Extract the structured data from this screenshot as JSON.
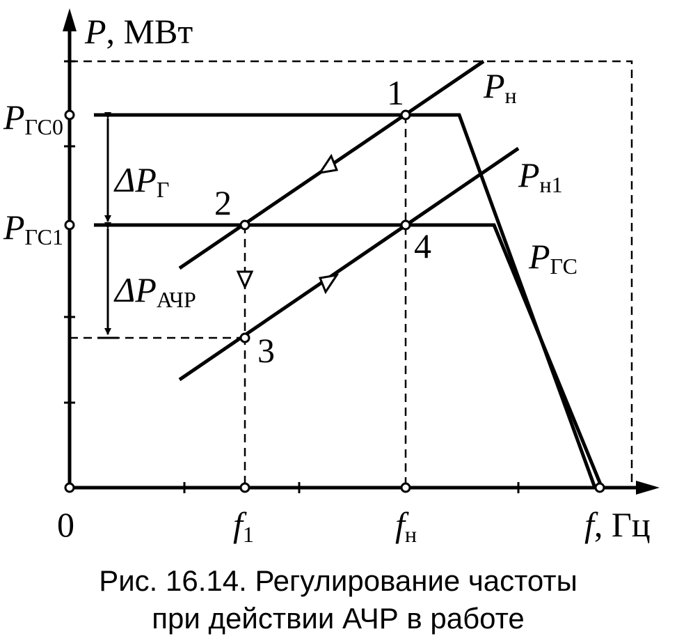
{
  "axes": {
    "y_label": {
      "symbol": "P",
      "unit": ", МВт"
    },
    "x_label": {
      "symbol": "f",
      "unit": ", Гц"
    },
    "origin": "0"
  },
  "levels": [
    {
      "main": "P",
      "sub": "ГС0"
    },
    {
      "main": "P",
      "sub": "ГС1"
    }
  ],
  "deltas": [
    {
      "main": "ΔP",
      "sub": "Г"
    },
    {
      "main": "ΔP",
      "sub": "АЧР"
    }
  ],
  "points": [
    "1",
    "2",
    "3",
    "4"
  ],
  "curves": [
    {
      "main": "P",
      "sub": "н"
    },
    {
      "main": "P",
      "sub": "н1"
    },
    {
      "main": "P",
      "sub": "ГС"
    }
  ],
  "frequencies": [
    {
      "main": "f",
      "sub": "1"
    },
    {
      "main": "f",
      "sub": "н"
    }
  ],
  "caption": [
    "Рис. 16.14. Регулирование частоты",
    "при действии АЧР в работе"
  ]
}
